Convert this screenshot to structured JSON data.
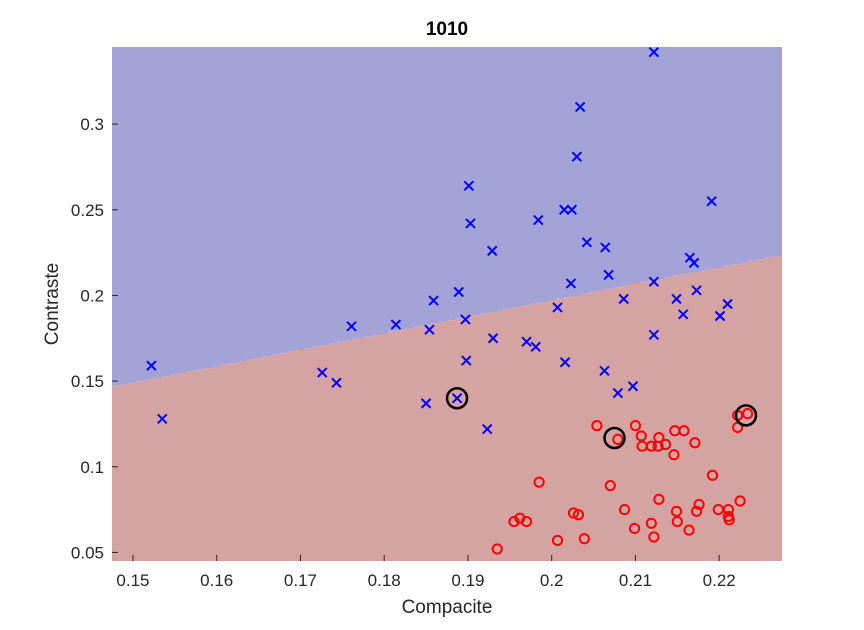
{
  "chart_data": {
    "type": "scatter",
    "title": "1010",
    "xlabel": "Compacite",
    "ylabel": "Contraste",
    "xlim": [
      0.1475,
      0.2275
    ],
    "ylim": [
      0.045,
      0.345
    ],
    "xticks": [
      0.15,
      0.16,
      0.17,
      0.18,
      0.19,
      0.2,
      0.21,
      0.22
    ],
    "xtick_labels": [
      "0.15",
      "0.16",
      "0.17",
      "0.18",
      "0.19",
      "0.2",
      "0.21",
      "0.22"
    ],
    "yticks": [
      0.05,
      0.1,
      0.15,
      0.2,
      0.25,
      0.3
    ],
    "ytick_labels": [
      "0.05",
      "0.1",
      "0.15",
      "0.2",
      "0.25",
      "0.3"
    ],
    "grid": false,
    "decision_boundary": {
      "points": [
        [
          0.1475,
          0.147
        ],
        [
          0.2275,
          0.224
        ]
      ],
      "upper_region_color": "#a3a3d8",
      "lower_region_color": "#d6a3a3"
    },
    "series": [
      {
        "marker": "x",
        "color": "#0000ff",
        "points": [
          [
            0.2122,
            0.342
          ],
          [
            0.2034,
            0.31
          ],
          [
            0.203,
            0.281
          ],
          [
            0.1901,
            0.264
          ],
          [
            0.2191,
            0.255
          ],
          [
            0.2015,
            0.25
          ],
          [
            0.2024,
            0.25
          ],
          [
            0.1903,
            0.242
          ],
          [
            0.1984,
            0.244
          ],
          [
            0.2042,
            0.231
          ],
          [
            0.2064,
            0.228
          ],
          [
            0.1929,
            0.226
          ],
          [
            0.2165,
            0.222
          ],
          [
            0.217,
            0.219
          ],
          [
            0.2068,
            0.212
          ],
          [
            0.2122,
            0.208
          ],
          [
            0.2023,
            0.207
          ],
          [
            0.2173,
            0.203
          ],
          [
            0.1889,
            0.202
          ],
          [
            0.2086,
            0.198
          ],
          [
            0.2149,
            0.198
          ],
          [
            0.1859,
            0.197
          ],
          [
            0.221,
            0.195
          ],
          [
            0.2007,
            0.193
          ],
          [
            0.2157,
            0.189
          ],
          [
            0.2201,
            0.188
          ],
          [
            0.1897,
            0.186
          ],
          [
            0.1761,
            0.182
          ],
          [
            0.1814,
            0.183
          ],
          [
            0.1854,
            0.18
          ],
          [
            0.2122,
            0.177
          ],
          [
            0.193,
            0.175
          ],
          [
            0.197,
            0.173
          ],
          [
            0.1981,
            0.17
          ],
          [
            0.1898,
            0.162
          ],
          [
            0.2016,
            0.161
          ],
          [
            0.1522,
            0.159
          ],
          [
            0.1726,
            0.155
          ],
          [
            0.2063,
            0.156
          ],
          [
            0.1743,
            0.149
          ],
          [
            0.2097,
            0.147
          ],
          [
            0.2079,
            0.143
          ],
          [
            0.1887,
            0.14
          ],
          [
            0.185,
            0.137
          ],
          [
            0.1535,
            0.128
          ],
          [
            0.1923,
            0.122
          ]
        ]
      },
      {
        "marker": "o",
        "color": "#ff0000",
        "points": [
          [
            0.2222,
            0.13
          ],
          [
            0.2234,
            0.131
          ],
          [
            0.2222,
            0.123
          ],
          [
            0.2054,
            0.124
          ],
          [
            0.21,
            0.124
          ],
          [
            0.2107,
            0.118
          ],
          [
            0.2079,
            0.116
          ],
          [
            0.2128,
            0.117
          ],
          [
            0.2147,
            0.121
          ],
          [
            0.2158,
            0.121
          ],
          [
            0.2119,
            0.112
          ],
          [
            0.2136,
            0.113
          ],
          [
            0.2108,
            0.112
          ],
          [
            0.2127,
            0.112
          ],
          [
            0.2171,
            0.114
          ],
          [
            0.2146,
            0.107
          ],
          [
            0.2192,
            0.095
          ],
          [
            0.1985,
            0.091
          ],
          [
            0.207,
            0.089
          ],
          [
            0.2128,
            0.081
          ],
          [
            0.2087,
            0.075
          ],
          [
            0.2176,
            0.078
          ],
          [
            0.2149,
            0.074
          ],
          [
            0.2173,
            0.074
          ],
          [
            0.2199,
            0.075
          ],
          [
            0.2211,
            0.075
          ],
          [
            0.2211,
            0.071
          ],
          [
            0.2225,
            0.08
          ],
          [
            0.2026,
            0.073
          ],
          [
            0.2032,
            0.072
          ],
          [
            0.215,
            0.068
          ],
          [
            0.2212,
            0.069
          ],
          [
            0.1962,
            0.07
          ],
          [
            0.1955,
            0.068
          ],
          [
            0.197,
            0.068
          ],
          [
            0.2119,
            0.067
          ],
          [
            0.2099,
            0.064
          ],
          [
            0.2164,
            0.063
          ],
          [
            0.2039,
            0.058
          ],
          [
            0.2007,
            0.057
          ],
          [
            0.2122,
            0.059
          ],
          [
            0.1935,
            0.052
          ]
        ]
      }
    ],
    "highlighted_points": {
      "marker": "circle",
      "color": "#000000",
      "points": [
        [
          0.1887,
          0.14
        ],
        [
          0.2075,
          0.1168
        ],
        [
          0.2232,
          0.13
        ]
      ]
    }
  }
}
